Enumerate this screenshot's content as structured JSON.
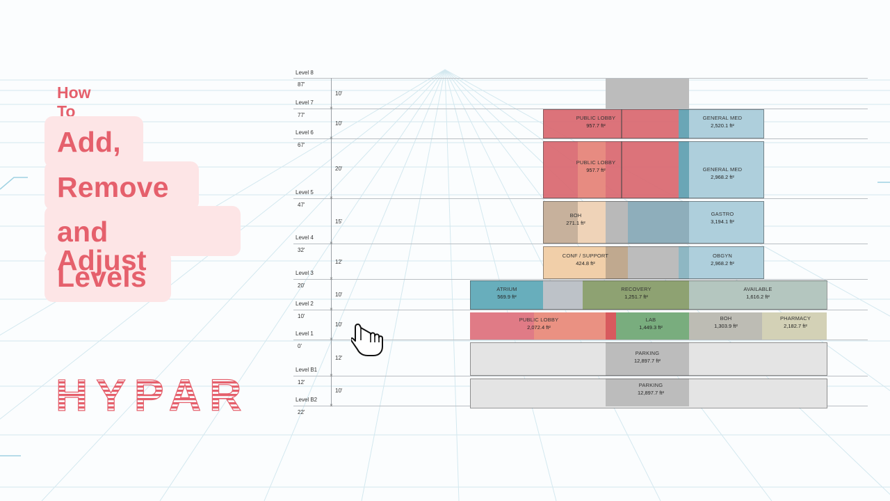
{
  "title": {
    "how_to": "How To",
    "lines": [
      "Add,",
      "Remove",
      "and Adjust",
      "Levels"
    ]
  },
  "brand": {
    "logo_text": "HYPAR",
    "accent": "#e5606c",
    "pill_bg": "#fde5e6"
  },
  "levels": [
    {
      "name": "Level 8",
      "elevation": "87'",
      "height": "10'"
    },
    {
      "name": "Level 7",
      "elevation": "77'",
      "height": "10'"
    },
    {
      "name": "Level 6",
      "elevation": "67'",
      "height": "20'"
    },
    {
      "name": "Level 5",
      "elevation": "47'",
      "height": "15'"
    },
    {
      "name": "Level 4",
      "elevation": "32'",
      "height": "12'"
    },
    {
      "name": "Level 3",
      "elevation": "20'",
      "height": "10'"
    },
    {
      "name": "Level 2",
      "elevation": "10'",
      "height": "10'"
    },
    {
      "name": "Level 1",
      "elevation": "0'",
      "height": "12'"
    },
    {
      "name": "Level B1",
      "elevation": "12'",
      "height": "10'"
    },
    {
      "name": "Level B2",
      "elevation": "22'",
      "height": ""
    }
  ],
  "spaces": [
    {
      "name": "PUBLIC LOBBY",
      "area": "957.7 ft²"
    },
    {
      "name": "GENERAL MED",
      "area": "2,520.1 ft²"
    },
    {
      "name": "PUBLIC LOBBY",
      "area": "957.7 ft²"
    },
    {
      "name": "GENERAL MED",
      "area": "2,968.2 ft²"
    },
    {
      "name": "BOH",
      "area": "271.1 ft²"
    },
    {
      "name": "GASTRO",
      "area": "3,194.1 ft²"
    },
    {
      "name": "CONF / SUPPORT",
      "area": "424.8 ft²"
    },
    {
      "name": "OBGYN",
      "area": "2,968.2 ft²"
    },
    {
      "name": "ATRIUM",
      "area": "569.9 ft²"
    },
    {
      "name": "RECOVERY",
      "area": "1,251.7 ft²"
    },
    {
      "name": "AVAILABLE",
      "area": "1,616.2 ft²"
    },
    {
      "name": "PUBLIC LOBBY",
      "area": "2,072.4 ft²"
    },
    {
      "name": "LAB",
      "area": "1,449.3 ft²"
    },
    {
      "name": "BOH",
      "area": "1,303.9 ft²"
    },
    {
      "name": "PHARMACY",
      "area": "2,182.7 ft²"
    },
    {
      "name": "PARKING",
      "area": "12,897.7 ft²"
    },
    {
      "name": "PARKING",
      "area": "12,897.7 ft²"
    }
  ],
  "colors": {
    "lobby": "#d9676f",
    "lobby_light": "#e98f82",
    "med": "#aecfdc",
    "teal": "#6aa6b6",
    "boh": "#c7b19c",
    "conf": "#f1cfa9",
    "gray": "#b9b9b9",
    "atrium": "#68aebc",
    "recovery": "#8ea272",
    "available": "#b4c6bf",
    "lab": "#79ad7e",
    "boh2": "#bdbcb4",
    "pharmacy": "#d3d1b6",
    "parking": "#e4e4e4"
  }
}
